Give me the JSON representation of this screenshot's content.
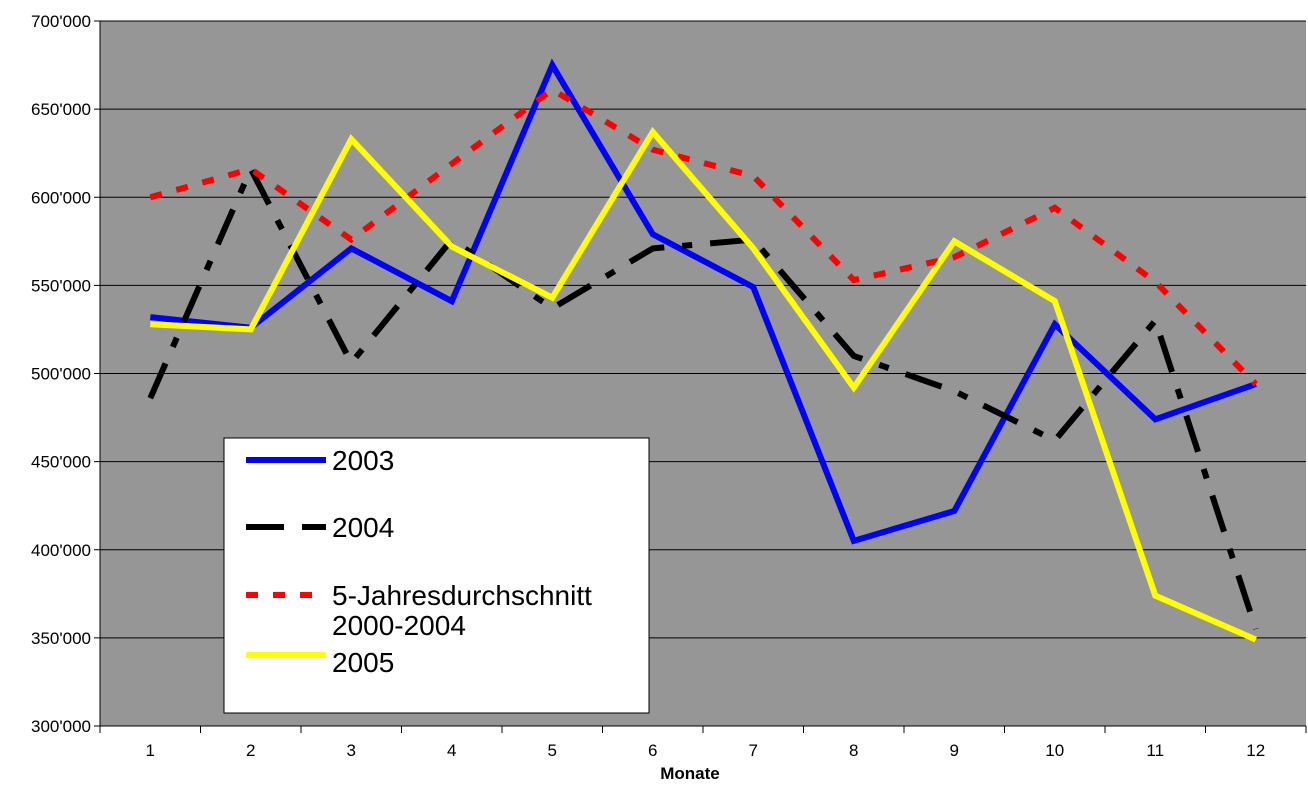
{
  "chart_data": {
    "type": "line",
    "title": "",
    "xlabel": "Monate",
    "ylabel": "",
    "categories": [
      "1",
      "2",
      "3",
      "4",
      "5",
      "6",
      "7",
      "8",
      "9",
      "10",
      "11",
      "12"
    ],
    "ylim": [
      300000,
      700000
    ],
    "yticks": [
      300000,
      350000,
      400000,
      450000,
      500000,
      550000,
      600000,
      650000,
      700000
    ],
    "ytick_labels": [
      "300'000",
      "350'000",
      "400'000",
      "450'000",
      "500'000",
      "550'000",
      "600'000",
      "650'000",
      "700'000"
    ],
    "grid": "horizontal",
    "plot_background": "#969696",
    "legend_position": "lower-left inside plot",
    "series": [
      {
        "name": "2003",
        "color": "#0000ff",
        "style": "solid",
        "values": [
          532000,
          526000,
          571000,
          541000,
          675000,
          579000,
          549000,
          405000,
          422000,
          528000,
          474000,
          494000
        ]
      },
      {
        "name": "2004",
        "color": "#000000",
        "style": "dash-dot",
        "values": [
          486000,
          616000,
          506000,
          576000,
          537000,
          571000,
          576000,
          510000,
          490000,
          462000,
          530000,
          355000
        ]
      },
      {
        "name": "5-Jahresdurchschnitt 2000-2004",
        "color": "#ff0000",
        "style": "dotted",
        "values": [
          600000,
          616000,
          576000,
          619000,
          661000,
          627000,
          612000,
          553000,
          566000,
          594000,
          552000,
          494000
        ]
      },
      {
        "name": "2005",
        "color": "#ffff00",
        "style": "solid",
        "values": [
          528000,
          525000,
          633000,
          572000,
          543000,
          637000,
          571000,
          492000,
          575000,
          541000,
          374000,
          349000
        ]
      }
    ]
  }
}
